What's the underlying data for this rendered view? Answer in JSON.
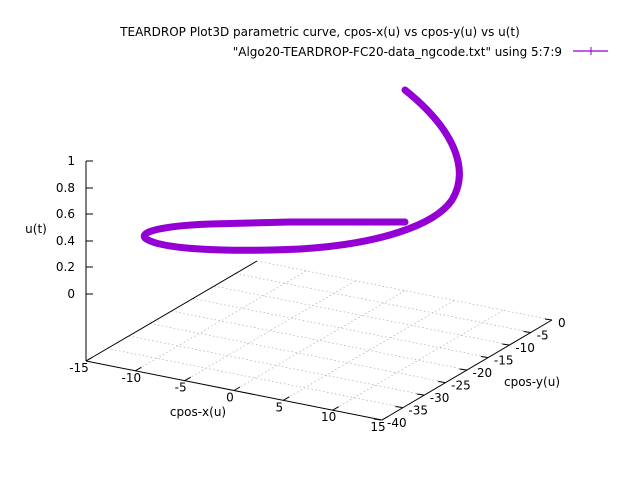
{
  "chart_data": {
    "type": "line3d",
    "title": "TEARDROP Plot3D parametric curve, cpos-x(u) vs cpos-y(u) vs u(t)",
    "legend": {
      "label": "\"Algo20-TEARDROP-FC20-data_ngcode.txt\" using 5:7:9",
      "position": "top-right"
    },
    "xlabel": "cpos-x(u)",
    "ylabel": "cpos-y(u)",
    "zlabel": "u(t)",
    "x_ticks": [
      "-15",
      "-10",
      "-5",
      "0",
      "5",
      "10",
      "15"
    ],
    "y_ticks": [
      "0",
      "-5",
      "-10",
      "-15",
      "-20",
      "-25",
      "-30",
      "-35",
      "-40"
    ],
    "z_ticks": [
      "0",
      "0.2",
      "0.4",
      "0.6",
      "0.8",
      "1"
    ],
    "xlim": [
      -15,
      15
    ],
    "ylim": [
      -40,
      0
    ],
    "zlim": [
      0,
      1
    ],
    "grid": true,
    "series_color": "#9400d3"
  }
}
